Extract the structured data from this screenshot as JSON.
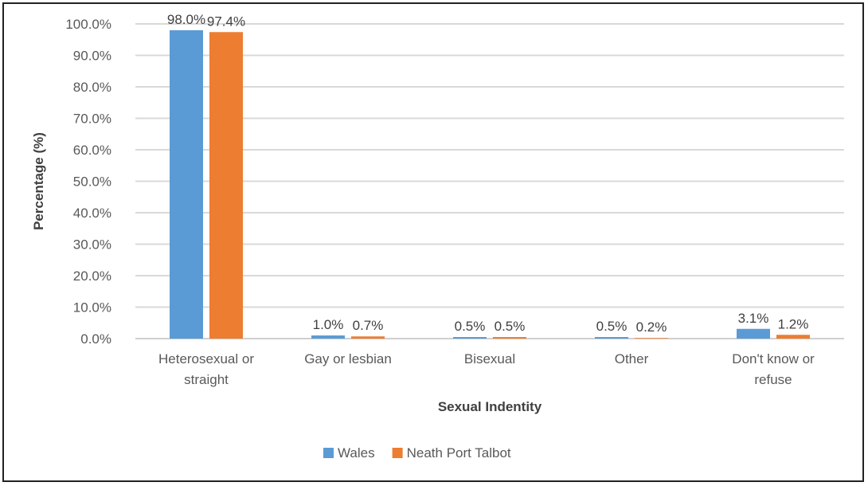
{
  "chart_data": {
    "type": "bar",
    "title": "",
    "xlabel": "Sexual Indentity",
    "ylabel": "Percentage (%)",
    "ylim": [
      0,
      100
    ],
    "yticks": [
      "0.0%",
      "10.0%",
      "20.0%",
      "30.0%",
      "40.0%",
      "50.0%",
      "60.0%",
      "70.0%",
      "80.0%",
      "90.0%",
      "100.0%"
    ],
    "categories": [
      [
        "Heterosexual or",
        "straight"
      ],
      [
        "Gay or lesbian"
      ],
      [
        "Bisexual"
      ],
      [
        "Other"
      ],
      [
        "Don't know or",
        "refuse"
      ]
    ],
    "series": [
      {
        "name": "Wales",
        "color": "#5b9bd5",
        "values": [
          98.0,
          1.0,
          0.5,
          0.5,
          3.1
        ],
        "labels": [
          "98.0%",
          "1.0%",
          "0.5%",
          "0.5%",
          "3.1%"
        ]
      },
      {
        "name": "Neath Port Talbot",
        "color": "#ed7d31",
        "values": [
          97.4,
          0.7,
          0.5,
          0.2,
          1.2
        ],
        "labels": [
          "97.4%",
          "0.7%",
          "0.5%",
          "0.2%",
          "1.2%"
        ]
      }
    ],
    "grid": true,
    "legend_position": "bottom"
  }
}
